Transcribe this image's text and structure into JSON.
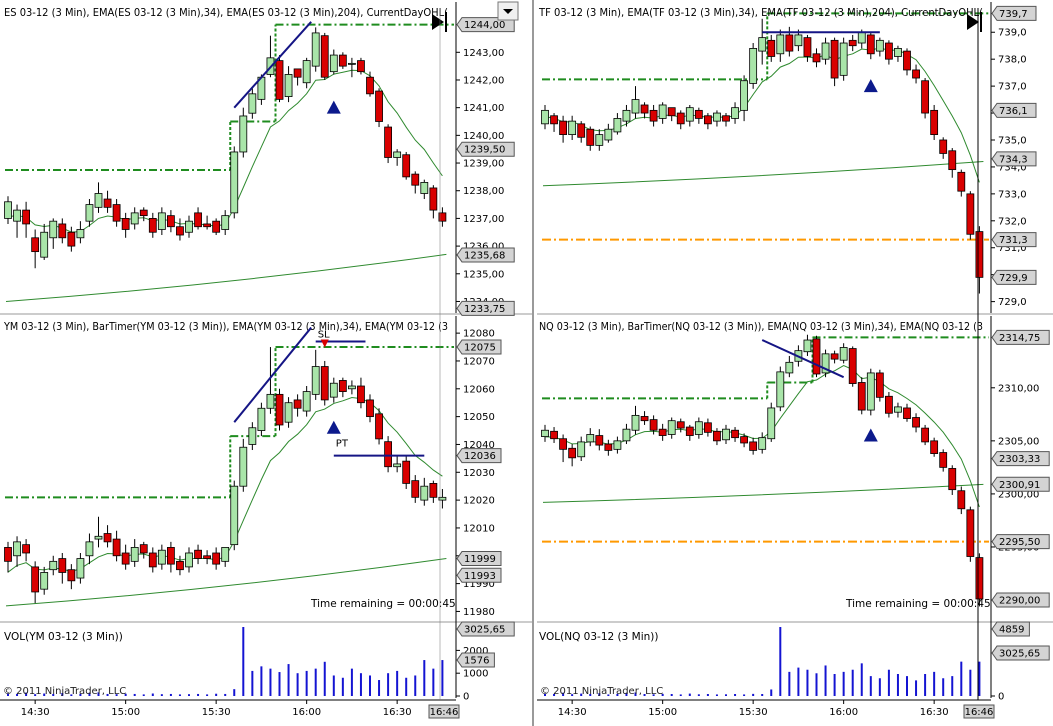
{
  "colors": {
    "up": "#a9e5a9",
    "down": "#d90000",
    "ema34": "#2f8a2f",
    "ema204": "#2f8a2f",
    "currentday": "#1f8c1f",
    "level": "#ff9900",
    "trend": "#151585",
    "volume": "#1414d2",
    "marker": "#0c1a8c"
  },
  "panels": [
    {
      "id": "es",
      "title": "ES 03-12 (3 Min), EMA(ES 03-12 (3 Min),34), EMA(ES 03-12 (3 Min),204), CurrentDayOHL(",
      "ticks": [
        "1243,00",
        "1242,00",
        "1241,00",
        "1240,00",
        "1239,00",
        "1238,00",
        "1237,00",
        "1236,00",
        "1235,00",
        "1234,00"
      ],
      "price_tags": [
        "1244,00",
        "1239,50",
        "1235,68",
        "1233,75"
      ]
    },
    {
      "id": "tf",
      "title": "TF 03-12 (3 Min), EMA(TF 03-12 (3 Min),34), EMA(TF 03-12 (3 Min),204), CurrentDayOHL(",
      "ticks": [
        "739,0",
        "738,0",
        "737,0",
        "736,0",
        "735,0",
        "734,0",
        "733,0",
        "732,0",
        "731,0",
        "730,0",
        "729,0"
      ],
      "price_tags": [
        "739,7",
        "736,1",
        "734,3",
        "731,3",
        "729,9"
      ]
    },
    {
      "id": "ym",
      "title": "YM 03-12 (3 Min), BarTimer(YM 03-12 (3 Min)), EMA(YM 03-12 (3 Min),34), EMA(YM 03-12 (3",
      "ticks": [
        "12080",
        "12070",
        "12060",
        "12050",
        "12040",
        "12030",
        "12020",
        "12010",
        "12000",
        "11990",
        "11980"
      ],
      "price_tags": [
        "12075",
        "12036",
        "11999",
        "11993"
      ],
      "time_remaining": "Time remaining = 00:00:45",
      "annotations": [
        "SL",
        "PT"
      ]
    },
    {
      "id": "nq",
      "title": "NQ 03-12 (3 Min), BarTimer(NQ 03-12 (3 Min)), EMA(NQ 03-12 (3 Min),34), EMA(NQ 03-12 (3",
      "ticks": [
        "2310,00",
        "2305,00",
        "2300,00",
        "2295,00",
        "2290,00"
      ],
      "price_tags": [
        "2314,75",
        "2303,33",
        "2300,91",
        "2295,50",
        "2290,00"
      ],
      "time_remaining": "Time remaining = 00:00:45"
    }
  ],
  "volume_panels": [
    {
      "id": "vol-ym",
      "title": "VOL(YM 03-12 (3 Min))",
      "ticks": [
        "2000",
        "1000",
        "0"
      ],
      "value_tags": [
        "3025,65",
        "1576"
      ],
      "copyright": "© 2011 NinjaTrader, LLC"
    },
    {
      "id": "vol-nq",
      "title": "VOL(NQ 03-12 (3 Min))",
      "ticks": [
        "0"
      ],
      "value_tags": [
        "4859",
        "3025,65"
      ],
      "copyright": "© 2011 NinjaTrader, LLC"
    }
  ],
  "time_axis": {
    "left": [
      "14:30",
      "15:00",
      "15:30",
      "16:00",
      "16:30"
    ],
    "left_current": "16:46",
    "right": [
      "14:30",
      "15:00",
      "15:30",
      "16:00",
      "16:30"
    ],
    "right_current": "16:46"
  },
  "toolbar": {
    "dropdown_icon": "chevron-down-icon"
  },
  "chart_data": [
    {
      "type": "candlestick",
      "title": "ES 03-12 (3 Min)",
      "ylim": [
        1233.8,
        1244.6
      ],
      "opens": [
        1237.0,
        1236.9,
        1237.3,
        1236.3,
        1235.6,
        1236.3,
        1236.8,
        1236.5,
        1236.3,
        1236.9,
        1237.4,
        1237.7,
        1237.5,
        1237.0,
        1236.8,
        1237.3,
        1237.0,
        1236.6,
        1237.1,
        1236.7,
        1236.5,
        1237.2,
        1236.8,
        1236.9,
        1236.6,
        1237.2,
        1239.4,
        1240.8,
        1241.3,
        1242.2,
        1242.7,
        1241.4,
        1242.4,
        1241.9,
        1242.5,
        1243.6,
        1242.3,
        1242.9,
        1242.6,
        1242.7,
        1242.1,
        1241.6,
        1240.3,
        1239.2,
        1239.3,
        1238.6,
        1237.9,
        1238.1,
        1237.2
      ],
      "closes": [
        1237.6,
        1237.3,
        1236.8,
        1235.8,
        1236.5,
        1236.9,
        1236.3,
        1236.0,
        1236.6,
        1237.5,
        1237.9,
        1237.4,
        1236.9,
        1236.6,
        1237.2,
        1237.1,
        1236.5,
        1237.2,
        1236.7,
        1236.4,
        1236.9,
        1236.7,
        1236.7,
        1236.5,
        1237.1,
        1239.4,
        1240.7,
        1241.5,
        1242.1,
        1242.8,
        1241.3,
        1242.2,
        1242.1,
        1242.7,
        1243.7,
        1242.1,
        1242.9,
        1242.5,
        1242.6,
        1242.3,
        1241.5,
        1240.5,
        1239.2,
        1239.4,
        1238.5,
        1238.2,
        1238.3,
        1237.3,
        1236.9
      ],
      "highs": [
        1237.8,
        1237.5,
        1237.6,
        1236.6,
        1236.8,
        1237.0,
        1237.0,
        1236.7,
        1236.9,
        1237.7,
        1238.3,
        1238.0,
        1237.7,
        1237.2,
        1237.4,
        1237.4,
        1237.2,
        1237.4,
        1237.3,
        1237.0,
        1237.1,
        1237.4,
        1237.1,
        1237.0,
        1237.3,
        1239.6,
        1241.0,
        1241.7,
        1242.2,
        1243.6,
        1242.9,
        1242.5,
        1242.3,
        1242.8,
        1243.9,
        1243.7,
        1243.1,
        1243.0,
        1242.8,
        1242.8,
        1242.3,
        1241.7,
        1240.4,
        1239.5,
        1239.4,
        1238.7,
        1238.4,
        1238.2,
        1237.4
      ],
      "lows": [
        1236.8,
        1236.3,
        1236.3,
        1235.2,
        1235.5,
        1235.9,
        1236.1,
        1235.8,
        1236.1,
        1236.7,
        1237.2,
        1237.2,
        1236.7,
        1236.3,
        1236.6,
        1236.9,
        1236.3,
        1236.4,
        1236.5,
        1236.2,
        1236.3,
        1236.6,
        1236.6,
        1236.4,
        1236.4,
        1237.0,
        1239.2,
        1240.6,
        1241.1,
        1242.1,
        1241.2,
        1241.2,
        1241.8,
        1241.7,
        1242.3,
        1242.0,
        1242.2,
        1242.4,
        1242.1,
        1242.2,
        1241.4,
        1240.3,
        1239.0,
        1238.9,
        1238.4,
        1237.9,
        1237.7,
        1237.0,
        1236.7
      ],
      "ema34_ends": [
        1236.9,
        1239.6
      ],
      "ema204_ends": [
        1234.0,
        1235.7
      ],
      "current_day_levels": [
        1238.75,
        1240.5,
        1244.0
      ],
      "markers": [
        {
          "type": "triangle-up",
          "bar": 36,
          "price": 1241.0
        }
      ]
    },
    {
      "type": "candlestick",
      "title": "TF 03-12 (3 Min)",
      "ylim": [
        728.8,
        739.9
      ],
      "opens": [
        735.6,
        735.9,
        735.7,
        735.2,
        735.6,
        735.4,
        734.8,
        735.0,
        735.3,
        735.7,
        736.0,
        736.3,
        736.1,
        735.8,
        736.2,
        736.0,
        735.7,
        736.1,
        735.9,
        735.7,
        735.9,
        735.8,
        736.1,
        737.1,
        738.3,
        738.7,
        738.2,
        738.9,
        738.5,
        738.8,
        738.2,
        738.0,
        738.7,
        737.4,
        738.7,
        738.6,
        738.9,
        738.3,
        738.6,
        738.1,
        738.3,
        737.6,
        737.2,
        736.1,
        735.0,
        734.6,
        733.8,
        733.0,
        731.6
      ],
      "closes": [
        736.1,
        735.6,
        735.2,
        735.7,
        735.1,
        734.8,
        735.2,
        735.4,
        735.8,
        736.1,
        736.5,
        736.0,
        735.7,
        736.3,
        735.9,
        735.6,
        736.2,
        735.8,
        735.6,
        736.0,
        735.7,
        736.2,
        737.2,
        738.4,
        738.8,
        738.1,
        738.9,
        738.3,
        738.9,
        738.1,
        737.9,
        738.6,
        737.3,
        738.6,
        738.5,
        739.0,
        738.2,
        738.7,
        738.0,
        738.4,
        737.6,
        737.3,
        736.0,
        735.2,
        734.5,
        733.9,
        733.1,
        731.5,
        729.9
      ],
      "highs": [
        736.3,
        736.0,
        735.9,
        735.9,
        735.7,
        735.5,
        735.4,
        735.6,
        736.0,
        736.3,
        737.0,
        736.4,
        736.3,
        736.4,
        736.2,
        736.1,
        736.3,
        736.2,
        736.0,
        736.1,
        736.0,
        736.4,
        737.4,
        738.6,
        739.5,
        738.9,
        739.1,
        739.2,
        739.1,
        738.9,
        738.4,
        738.8,
        738.8,
        738.8,
        738.9,
        739.1,
        739.0,
        738.8,
        738.7,
        738.5,
        738.4,
        737.8,
        737.3,
        736.3,
        735.1,
        734.7,
        733.9,
        733.1,
        731.8
      ],
      "lows": [
        735.4,
        735.3,
        734.9,
        735.0,
        734.9,
        734.6,
        734.6,
        734.9,
        735.2,
        735.5,
        735.8,
        735.8,
        735.5,
        735.6,
        735.7,
        735.4,
        735.5,
        735.6,
        735.4,
        735.5,
        735.5,
        735.6,
        735.7,
        736.9,
        737.8,
        737.9,
        737.9,
        738.1,
        738.3,
        737.9,
        737.7,
        737.8,
        737.0,
        737.2,
        738.3,
        738.4,
        738.0,
        738.1,
        737.8,
        737.9,
        737.4,
        737.1,
        735.8,
        735.0,
        734.3,
        733.6,
        732.9,
        731.3,
        729.3
      ],
      "ema34_ends": [
        735.8,
        735.6
      ],
      "ema204_ends": [
        733.3,
        734.2
      ],
      "current_day_levels": [
        737.25,
        739.7
      ],
      "level_line": 731.3,
      "markers": [
        {
          "type": "triangle-up",
          "bar": 36,
          "price": 737.0
        }
      ]
    },
    {
      "type": "candlestick",
      "title": "YM 03-12 (3 Min)",
      "ylim": [
        11978,
        12084
      ],
      "opens": [
        12003,
        12000,
        12004,
        11996,
        11988,
        11995,
        11999,
        11995,
        11992,
        12000,
        12006,
        12008,
        12006,
        12001,
        11998,
        12004,
        12001,
        11997,
        12003,
        11998,
        11996,
        12002,
        12000,
        12001,
        11998,
        12004,
        12025,
        12040,
        12045,
        12053,
        12058,
        12048,
        12056,
        12052,
        12058,
        12068,
        12057,
        12063,
        12060,
        12061,
        12056,
        12051,
        12041,
        12032,
        12034,
        12027,
        12020,
        12026,
        12020
      ],
      "closes": [
        11998,
        12005,
        12001,
        11987,
        11994,
        11998,
        11994,
        11991,
        11999,
        12005,
        12007,
        12005,
        12000,
        11997,
        12003,
        12001,
        11996,
        12002,
        11997,
        11995,
        12001,
        11999,
        11999,
        11997,
        12003,
        12025,
        12039,
        12046,
        12053,
        12058,
        12047,
        12055,
        12053,
        12059,
        12068,
        12056,
        12062,
        12059,
        12061,
        12055,
        12050,
        12042,
        12032,
        12033,
        12026,
        12021,
        12025,
        12021,
        12021
      ],
      "highs": [
        12005,
        12007,
        12006,
        11998,
        11996,
        12000,
        12001,
        11997,
        12001,
        12008,
        12014,
        12011,
        12009,
        12004,
        12006,
        12005,
        12003,
        12004,
        12005,
        12000,
        12003,
        12004,
        12002,
        12003,
        12001,
        12027,
        12042,
        12048,
        12055,
        12075,
        12060,
        12057,
        12058,
        12061,
        12074,
        12070,
        12064,
        12064,
        12063,
        12064,
        12058,
        12053,
        12043,
        12036,
        12036,
        12029,
        12028,
        12027,
        12024
      ],
      "lows": [
        11994,
        11996,
        11998,
        11983,
        11986,
        11993,
        11990,
        11988,
        11990,
        11997,
        12003,
        12003,
        11998,
        11995,
        11996,
        11999,
        11994,
        11995,
        11994,
        11993,
        11994,
        11997,
        11997,
        11995,
        11996,
        12002,
        12023,
        12038,
        12043,
        12051,
        12045,
        12046,
        12050,
        12050,
        12056,
        12054,
        12055,
        12057,
        12058,
        12053,
        12048,
        12040,
        12030,
        12030,
        12024,
        12019,
        12018,
        12019,
        12017
      ],
      "ema34_ends": [
        11993,
        12036
      ],
      "ema204_ends": [
        11982,
        11999
      ],
      "current_day_levels": [
        12021,
        12043,
        12075
      ],
      "markers": [
        {
          "type": "triangle-up",
          "bar": 36,
          "price": 12046
        }
      ]
    },
    {
      "type": "candlestick",
      "title": "NQ 03-12 (3 Min)",
      "ylim": [
        2288.4,
        2316.2
      ],
      "opens": [
        2305.4,
        2305.9,
        2305.2,
        2304.3,
        2303.5,
        2304.9,
        2305.5,
        2304.7,
        2304.2,
        2305.0,
        2306.0,
        2307.3,
        2307.0,
        2306.1,
        2305.6,
        2306.8,
        2306.3,
        2305.6,
        2306.7,
        2305.9,
        2305.1,
        2306.0,
        2305.4,
        2304.9,
        2304.2,
        2305.2,
        2308.2,
        2311.4,
        2312.5,
        2313.4,
        2314.6,
        2311.4,
        2313.2,
        2312.6,
        2313.7,
        2310.5,
        2307.9,
        2311.4,
        2309.2,
        2307.7,
        2308.1,
        2307.2,
        2306.2,
        2305.0,
        2303.9,
        2302.4,
        2300.3,
        2298.5,
        2294.0
      ],
      "closes": [
        2306.0,
        2305.2,
        2304.2,
        2303.4,
        2304.9,
        2305.6,
        2304.6,
        2304.1,
        2305.0,
        2306.1,
        2307.4,
        2306.9,
        2306.0,
        2305.5,
        2306.9,
        2306.2,
        2305.5,
        2306.8,
        2305.8,
        2305.0,
        2306.1,
        2305.3,
        2304.8,
        2304.1,
        2305.3,
        2308.1,
        2311.5,
        2312.4,
        2313.5,
        2314.5,
        2311.3,
        2313.2,
        2312.7,
        2313.8,
        2310.4,
        2307.9,
        2311.4,
        2309.1,
        2307.6,
        2308.2,
        2307.1,
        2306.3,
        2304.9,
        2303.8,
        2302.5,
        2300.4,
        2298.6,
        2294.1,
        2290.1
      ],
      "highs": [
        2306.5,
        2306.3,
        2305.6,
        2304.7,
        2305.4,
        2306.2,
        2306.1,
        2305.1,
        2305.4,
        2306.6,
        2308.3,
        2307.8,
        2307.4,
        2306.6,
        2307.2,
        2307.1,
        2306.5,
        2307.2,
        2307.1,
        2306.2,
        2306.5,
        2306.3,
        2305.7,
        2305.3,
        2305.8,
        2308.6,
        2312.0,
        2313.0,
        2314.0,
        2315.0,
        2314.9,
        2313.6,
        2313.5,
        2314.2,
        2313.9,
        2311.0,
        2311.8,
        2311.7,
        2309.6,
        2308.6,
        2308.5,
        2307.6,
        2306.5,
        2305.3,
        2304.2,
        2302.7,
        2300.7,
        2298.8,
        2294.4
      ],
      "lows": [
        2304.9,
        2304.8,
        2303.0,
        2302.6,
        2303.1,
        2304.5,
        2304.1,
        2303.6,
        2303.8,
        2304.7,
        2305.6,
        2306.5,
        2305.6,
        2305.0,
        2305.2,
        2305.8,
        2305.0,
        2305.2,
        2305.4,
        2304.6,
        2304.7,
        2304.9,
        2304.4,
        2303.7,
        2303.8,
        2304.9,
        2307.8,
        2311.0,
        2312.0,
        2313.0,
        2311.0,
        2311.0,
        2312.3,
        2312.3,
        2310.1,
        2307.5,
        2307.4,
        2308.7,
        2307.2,
        2307.2,
        2306.8,
        2305.8,
        2304.6,
        2303.5,
        2302.1,
        2299.9,
        2298.1,
        2293.6,
        2289.4
      ],
      "ema34_ends": [
        2305.2,
        2303.3
      ],
      "ema204_ends": [
        2299.2,
        2300.9
      ],
      "current_day_levels": [
        2309.0,
        2310.5,
        2314.75
      ],
      "level_line": 2295.5,
      "markers": [
        {
          "type": "triangle-up",
          "bar": 36,
          "price": 2305.5
        }
      ]
    },
    {
      "type": "bar",
      "title": "VOL(YM 03-12 (3 Min))",
      "ylim": [
        0,
        3025.65
      ],
      "values": [
        120,
        90,
        150,
        80,
        110,
        90,
        130,
        70,
        100,
        140,
        160,
        90,
        80,
        100,
        90,
        70,
        110,
        80,
        90,
        70,
        80,
        90,
        70,
        100,
        90,
        300,
        3025.65,
        1100,
        1300,
        1200,
        1050,
        1400,
        1000,
        1100,
        1200,
        1500,
        900,
        800,
        1200,
        1000,
        900,
        700,
        1000,
        1100,
        800,
        900,
        1576,
        1200,
        1576
      ]
    },
    {
      "type": "bar",
      "title": "VOL(NQ 03-12 (3 Min))",
      "ylim": [
        0,
        4859
      ],
      "values": [
        180,
        140,
        230,
        130,
        170,
        140,
        200,
        110,
        150,
        220,
        250,
        140,
        120,
        150,
        140,
        110,
        170,
        120,
        140,
        110,
        120,
        140,
        110,
        150,
        140,
        460,
        4859,
        1700,
        2000,
        1850,
        1600,
        2150,
        1550,
        1700,
        1850,
        2300,
        1400,
        1250,
        1850,
        1550,
        1400,
        1100,
        1550,
        1700,
        1250,
        1400,
        2420,
        1850,
        2420
      ]
    }
  ]
}
